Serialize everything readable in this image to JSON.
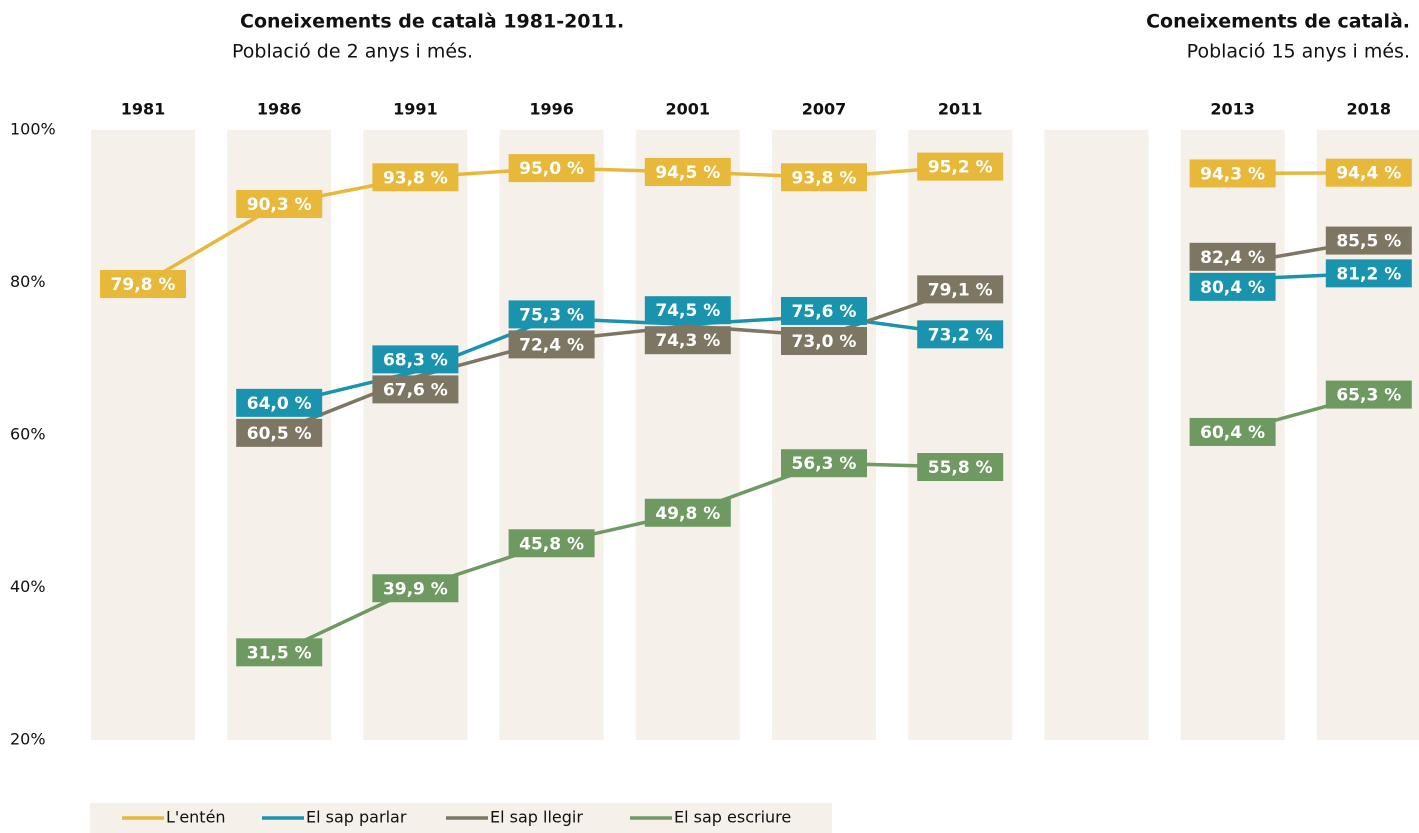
{
  "chart_data": {
    "type": "line",
    "title": "Coneixements de català 1981-2011.",
    "subtitle": "Població de 2 anys i més.",
    "right_title": "Coneixements de català.",
    "right_subtitle": "Població 15 anys i més.",
    "categories": [
      "1981",
      "1986",
      "1991",
      "1996",
      "2001",
      "2007",
      "2011",
      null,
      "2013",
      "2018"
    ],
    "ylim": [
      20,
      100
    ],
    "yticks": [
      {
        "value": 20,
        "label": "20%"
      },
      {
        "value": 40,
        "label": "40%"
      },
      {
        "value": 60,
        "label": "60%"
      },
      {
        "value": 80,
        "label": "80%"
      },
      {
        "value": 100,
        "label": "100%"
      }
    ],
    "grid": false,
    "legend": "bottom",
    "band_color": "#f5f0ea",
    "series": [
      {
        "name": "L'entén",
        "color": "#e8b83a",
        "values": [
          79.8,
          90.3,
          93.8,
          95.0,
          94.5,
          93.8,
          95.2,
          null,
          94.3,
          94.4
        ],
        "value_labels": [
          "79,8 %",
          "90,3 %",
          "93,8 %",
          "95,0 %",
          "94,5 %",
          "93,8 %",
          "95,2 %",
          null,
          "94,3 %",
          "94,4 %"
        ]
      },
      {
        "name": "El sap parlar",
        "color": "#1a94ae",
        "values": [
          null,
          64.0,
          68.3,
          75.3,
          74.5,
          75.6,
          73.2,
          null,
          80.4,
          81.2
        ],
        "value_labels": [
          null,
          "64,0 %",
          "68,3 %",
          "75,3 %",
          "74,5 %",
          "75,6 %",
          "73,2 %",
          null,
          "80,4 %",
          "81,2 %"
        ]
      },
      {
        "name": "El sap llegir",
        "color": "#7d7663",
        "values": [
          null,
          60.5,
          67.6,
          72.4,
          74.3,
          73.0,
          79.1,
          null,
          82.4,
          85.5
        ],
        "value_labels": [
          null,
          "60,5 %",
          "67,6 %",
          "72,4 %",
          "74,3 %",
          "73,0 %",
          "79,1 %",
          null,
          "82,4 %",
          "85,5 %"
        ]
      },
      {
        "name": "El sap escriure",
        "color": "#6e9a62",
        "values": [
          null,
          31.5,
          39.9,
          45.8,
          49.8,
          56.3,
          55.8,
          null,
          60.4,
          65.3
        ],
        "value_labels": [
          null,
          "31,5 %",
          "39,9 %",
          "45,8 %",
          "49,8 %",
          "56,3 %",
          "55,8 %",
          null,
          "60,4 %",
          "65,3 %"
        ]
      }
    ]
  }
}
